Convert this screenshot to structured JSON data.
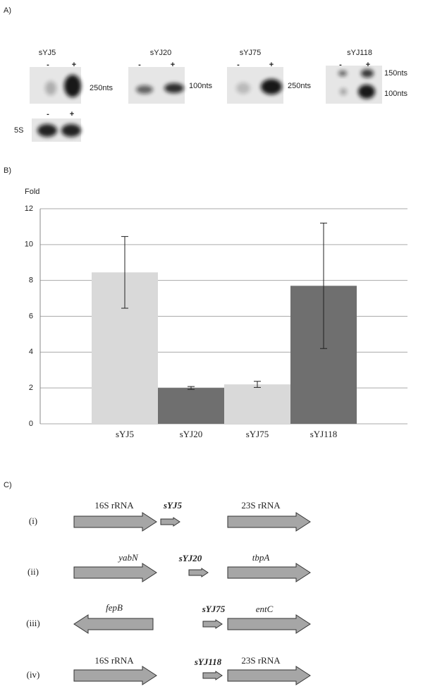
{
  "panel_labels": [
    "A)",
    "B)",
    "C)"
  ],
  "blots": [
    {
      "name": "sYJ5",
      "lanes": [
        "-",
        "+"
      ],
      "sizes": [
        "250nts"
      ]
    },
    {
      "name": "sYJ20",
      "lanes": [
        "-",
        "+"
      ],
      "sizes": [
        "100nts"
      ]
    },
    {
      "name": "sYJ75",
      "lanes": [
        "-",
        "+"
      ],
      "sizes": [
        "250nts"
      ]
    },
    {
      "name": "sYJ118",
      "lanes": [
        "-",
        "+"
      ],
      "sizes": [
        "150nts",
        "100nts"
      ]
    }
  ],
  "loading_control": {
    "name": "5S",
    "lanes": [
      "-",
      "+"
    ]
  },
  "chart_data": {
    "type": "bar",
    "ylabel": "Fold",
    "categories": [
      "sYJ5",
      "sYJ20",
      "sYJ75",
      "sYJ118"
    ],
    "values": [
      8.45,
      2.0,
      2.2,
      7.7
    ],
    "errors": [
      2.0,
      0.08,
      0.17,
      3.5
    ],
    "colors": [
      "#d9d9d9",
      "#6f6f6f",
      "#d9d9d9",
      "#6f6f6f"
    ],
    "ylim": [
      0,
      12
    ],
    "yticks": [
      0,
      2,
      4,
      6,
      8,
      10,
      12
    ],
    "grid": true
  },
  "operons": [
    {
      "label": "(i)",
      "genes": [
        "16S rRNA",
        "sYJ5",
        "23S rRNA"
      ]
    },
    {
      "label": "(ii)",
      "genes": [
        "yabN",
        "sYJ20",
        "tbpA"
      ]
    },
    {
      "label": "(iii)",
      "genes": [
        "fepB",
        "sYJ75",
        "entC"
      ]
    },
    {
      "label": "(iv)",
      "genes": [
        "16S rRNA",
        "sYJ118",
        "23S rRNA"
      ]
    }
  ]
}
